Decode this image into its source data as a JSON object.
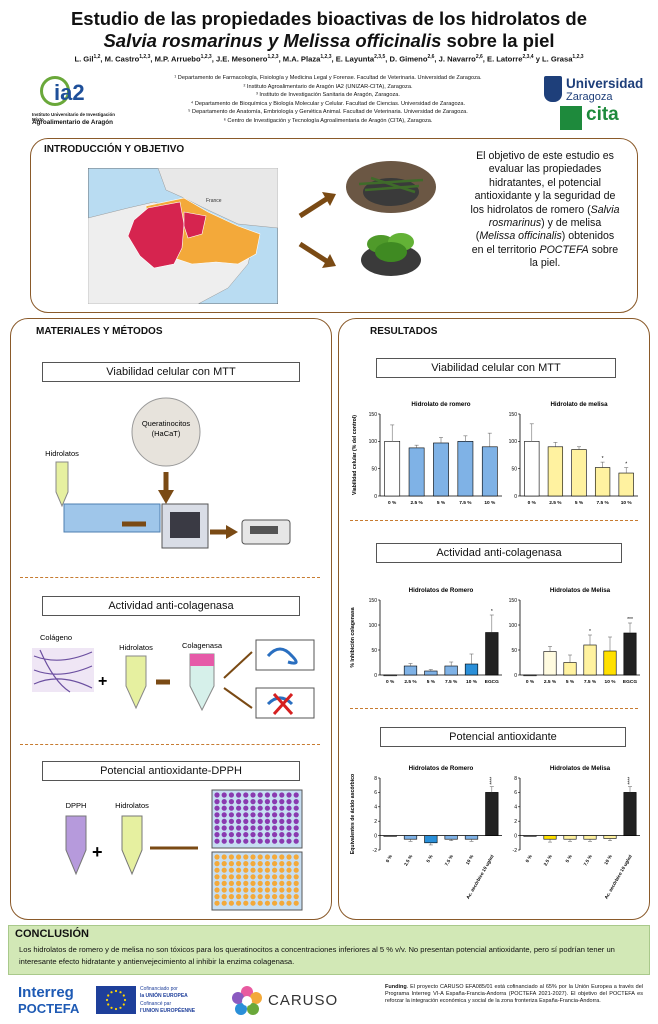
{
  "header": {
    "title_line1": "Estudio de las propiedades bioactivas de los hidrolatos de",
    "title_line2_italic": "Salvia rosmarinus y Melissa officinalis",
    "title_line2_rest": " sobre la piel",
    "authors": [
      {
        "name": "L. Gil",
        "sup": "1,2"
      },
      {
        "name": "M. Castro",
        "sup": "1,2,3"
      },
      {
        "name": "M.P. Arruebo",
        "sup": "1,2,3"
      },
      {
        "name": "J.E. Mesonero",
        "sup": "1,2,3"
      },
      {
        "name": "M.A. Plaza",
        "sup": "1,2,3"
      },
      {
        "name": "E. Layunta",
        "sup": "2,3,5"
      },
      {
        "name": "D. Gimeno",
        "sup": "2,6"
      },
      {
        "name": "J. Navarro",
        "sup": "2,6"
      },
      {
        "name": "E. Latorre",
        "sup": "2,3,4"
      },
      {
        "name": "L. Grasa",
        "sup": "1,2,3"
      }
    ],
    "author_last_sep": " y ",
    "affiliations": [
      "¹ Departamento de Farmacología, Fisiología y Medicina Legal y Forense. Facultad de Veterinaria. Universidad de Zaragoza.",
      "² Instituto Agroalimentario de Aragón IA2 (UNIZAR-CITA), Zaragoza.",
      "³ Instituto de Investigación Sanitaria de Aragón, Zaragoza.",
      "⁴ Departamento de Bioquímica y Biología Molecular y Celular. Facultad de Ciencias. Universidad de Zaragoza.",
      "⁵ Departamento de Anatomía, Embriología y Genética Animal. Facultad de Veterinaria. Universidad de Zaragoza.",
      "⁶ Centro de Investigación y Tecnología Agroalimentaria de Aragón (CITA), Zaragoza."
    ]
  },
  "logos": {
    "ia2_text": "ia2",
    "ia2_caption1": "Instituto Universitario de Investigación Mixto",
    "ia2_caption2": "Agroalimentario de Aragón",
    "unizar_line1": "Universidad",
    "unizar_line2": "Zaragoza",
    "cita": "cita",
    "interreg_line1": "Interreg",
    "interreg_line2": "POCTEFA",
    "eu_line1": "Cofinanciado por",
    "eu_line2": "la UNIÓN EUROPEA",
    "eu_line3": "Cofinancé par",
    "eu_line4": "l'UNION EUROPÉENNE",
    "caruso": "CARUSO"
  },
  "intro": {
    "title": "INTRODUCCIÓN Y OBJETIVO",
    "map_label": "France",
    "text_before": "El objetivo de este estudio es evaluar las propiedades hidratantes, el potencial antioxidante y la seguridad de los hidrolatos de romero (",
    "text_italic1": "Salvia rosmarinus",
    "text_mid": ") y de melisa (",
    "text_italic2": "Melissa officinalis",
    "text_mid2": ") obtenidos en el territorio ",
    "text_italic3": "POCTEFA",
    "text_after": " sobre la piel."
  },
  "methods": {
    "title": "MATERIALES Y MÉTODOS",
    "mtt_title": "Viabilidad celular con MTT",
    "queratinocitos": "Queratinocitos",
    "hacat": "(HaCaT)",
    "hidrolatos": "Hidrolatos",
    "colag_title": "Actividad anti-colagenasa",
    "colageno": "Colágeno",
    "colagenasa": "Colagenasa",
    "dpph_title": "Potencial antioxidante-DPPH",
    "dpph": "DPPH"
  },
  "results": {
    "title": "RESULTADOS",
    "mtt_title": "Viabilidad celular con MTT",
    "colag_title": "Actividad anti-colagenasa",
    "antiox_title": "Potencial antioxidante"
  },
  "chart_data": [
    {
      "type": "bar",
      "title": "Hidrolato de romero",
      "ylabel": "Viabilidad celular (% del control)",
      "categories": [
        "0 %",
        "2.5 %",
        "5 %",
        "7.5 %",
        "10 %"
      ],
      "values": [
        100,
        88,
        97,
        100,
        90
      ],
      "errors": [
        30,
        5,
        10,
        10,
        25
      ],
      "significance": [
        "",
        "",
        "",
        "",
        ""
      ],
      "ylim": [
        0,
        150
      ],
      "yticks": [
        0,
        50,
        100,
        150
      ],
      "colors": [
        "#ffffff",
        "#7fb2e6",
        "#7fb2e6",
        "#7fb2e6",
        "#7fb2e6"
      ]
    },
    {
      "type": "bar",
      "title": "Hidrolato de melisa",
      "ylabel": "",
      "categories": [
        "0 %",
        "2.5 %",
        "5 %",
        "7.5 %",
        "10 %"
      ],
      "values": [
        100,
        90,
        85,
        52,
        42
      ],
      "errors": [
        32,
        8,
        5,
        10,
        10
      ],
      "significance": [
        "",
        "",
        "",
        "*",
        "*"
      ],
      "ylim": [
        0,
        150
      ],
      "yticks": [
        0,
        50,
        100,
        150
      ],
      "colors": [
        "#ffffff",
        "#fff2a0",
        "#fff2a0",
        "#fff2a0",
        "#fff2a0"
      ]
    },
    {
      "type": "bar",
      "title": "Hidrolatos de Romero",
      "ylabel": "% Inhibición colagenasa",
      "categories": [
        "0 %",
        "2.5 %",
        "5 %",
        "7.5 %",
        "10 %",
        "EGCG"
      ],
      "values": [
        0,
        18,
        8,
        18,
        22,
        85
      ],
      "errors": [
        0,
        5,
        3,
        8,
        20,
        35
      ],
      "significance": [
        "",
        "",
        "",
        "",
        "",
        "*"
      ],
      "ylim": [
        0,
        150
      ],
      "yticks": [
        0,
        50,
        100,
        150
      ],
      "colors": [
        "#ffffff",
        "#7fb2e6",
        "#7fb2e6",
        "#7fb2e6",
        "#2a8fd8",
        "#222222"
      ]
    },
    {
      "type": "bar",
      "title": "Hidrolatos de Melisa",
      "ylabel": "",
      "categories": [
        "0 %",
        "2.5 %",
        "5 %",
        "7.5 %",
        "10 %",
        "EGCG"
      ],
      "values": [
        0,
        47,
        25,
        60,
        48,
        84
      ],
      "errors": [
        0,
        10,
        15,
        20,
        28,
        20
      ],
      "significance": [
        "",
        "",
        "",
        "*",
        "",
        "***"
      ],
      "ylim": [
        0,
        150
      ],
      "yticks": [
        0,
        50,
        100,
        150
      ],
      "colors": [
        "#ffffff",
        "#fffbe0",
        "#fff2a0",
        "#fff2a0",
        "#ffe000",
        "#222222"
      ]
    },
    {
      "type": "bar",
      "title": "Hidrolatos de Romero",
      "ylabel": "Equivalentes de ácido ascórbico",
      "categories": [
        "0 %",
        "2.5 %",
        "5 %",
        "7.5 %",
        "10 %",
        "Ac. ascórbico 10 ug/ml"
      ],
      "values": [
        0,
        -0.5,
        -1,
        -0.5,
        -0.5,
        6
      ],
      "errors": [
        0,
        0.3,
        0.3,
        0.2,
        0.3,
        0.8
      ],
      "significance": [
        "",
        "",
        "",
        "",
        "",
        "****"
      ],
      "ylim": [
        -2,
        8
      ],
      "yticks": [
        -2,
        0,
        2,
        4,
        6,
        8
      ],
      "colors": [
        "#ffffff",
        "#7fb2e6",
        "#2a8fd8",
        "#7fb2e6",
        "#7fb2e6",
        "#222222"
      ]
    },
    {
      "type": "bar",
      "title": "Hidrolatos de Melisa",
      "ylabel": "",
      "categories": [
        "0 %",
        "2.5 %",
        "5 %",
        "7.5 %",
        "10 %",
        "Ac. ascórbico 10 ug/ml"
      ],
      "values": [
        0,
        -0.5,
        -0.5,
        -0.5,
        -0.4,
        6
      ],
      "errors": [
        0,
        0.4,
        0.3,
        0.3,
        0.3,
        0.8
      ],
      "significance": [
        "",
        "",
        "",
        "",
        "",
        "****"
      ],
      "ylim": [
        -2,
        8
      ],
      "yticks": [
        -2,
        0,
        2,
        4,
        6,
        8
      ],
      "colors": [
        "#ffffff",
        "#ffe000",
        "#fff2a0",
        "#fff2a0",
        "#fff2a0",
        "#222222"
      ]
    }
  ],
  "conclusion": {
    "title": "CONCLUSIÓN",
    "text": "Los hidrolatos de romero y de melisa no son tóxicos para los queratinocitos a concentraciones inferiores al 5 % v/v. No presentan potencial antioxidante, pero sí podrían tener un interesante efecto hidratante y antienvejecimiento al inhibir la enzima colagenasa."
  },
  "funding": {
    "label": "Funding",
    "text": ". El proyecto CARUSO EFA085/01 está cofinanciado al 65% por la Unión Europea a través del Programa Interreg VI-A España-Francia-Andorra (POCTEFA 2021-2027). El objetivo del POCTEFA es reforzar la integración económica y social de la zona fronteriza España-Francia-Andorra."
  }
}
